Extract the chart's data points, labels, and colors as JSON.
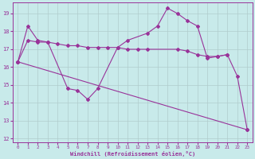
{
  "xlabel": "Windchill (Refroidissement éolien,°C)",
  "background_color": "#c8eaea",
  "grid_color": "#b0cccc",
  "line_color": "#993399",
  "xlim": [
    -0.5,
    23.5
  ],
  "ylim": [
    11.8,
    19.6
  ],
  "yticks": [
    12,
    13,
    14,
    15,
    16,
    17,
    18,
    19
  ],
  "xticks": [
    0,
    1,
    2,
    3,
    4,
    5,
    6,
    7,
    8,
    9,
    10,
    11,
    12,
    13,
    14,
    15,
    16,
    17,
    18,
    19,
    20,
    21,
    22,
    23
  ],
  "line1_x": [
    0,
    1,
    2,
    3,
    5,
    6,
    7,
    8,
    10,
    11,
    13,
    14,
    15,
    16,
    17,
    18,
    19,
    20,
    21,
    22,
    23
  ],
  "line1_y": [
    16.3,
    18.3,
    17.5,
    17.4,
    14.8,
    14.7,
    14.2,
    14.8,
    17.1,
    17.5,
    17.9,
    18.3,
    19.3,
    19.0,
    18.6,
    18.3,
    16.5,
    16.6,
    16.7,
    15.5,
    12.5
  ],
  "line2_x": [
    0,
    1,
    2,
    3,
    4,
    5,
    6,
    7,
    8,
    9,
    10,
    11,
    12,
    13,
    16,
    17,
    18,
    19,
    20,
    21
  ],
  "line2_y": [
    16.3,
    17.5,
    17.4,
    17.4,
    17.3,
    17.2,
    17.2,
    17.1,
    17.1,
    17.1,
    17.1,
    17.0,
    17.0,
    17.0,
    17.0,
    16.9,
    16.7,
    16.6,
    16.6,
    16.7
  ],
  "line3_x": [
    0,
    23
  ],
  "line3_y": [
    16.3,
    12.5
  ]
}
